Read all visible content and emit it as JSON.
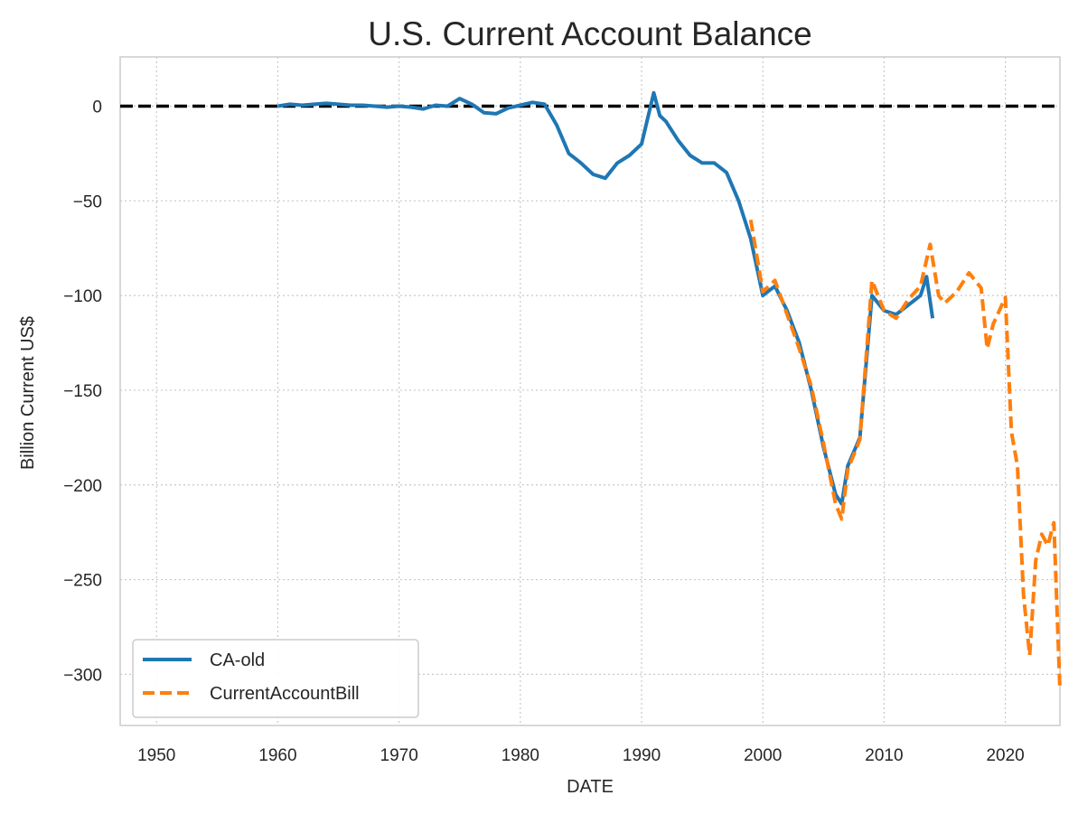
{
  "chart_data": {
    "type": "line",
    "title": "U.S. Current Account Balance",
    "xlabel": "DATE",
    "ylabel": "Billion Current US$",
    "xlim": [
      1947,
      2024.5
    ],
    "ylim": [
      -327,
      26
    ],
    "xticks": [
      1950,
      1960,
      1970,
      1980,
      1990,
      2000,
      2010,
      2020
    ],
    "xtick_labels": [
      "1950",
      "1960",
      "1970",
      "1980",
      "1990",
      "2000",
      "2010",
      "2020"
    ],
    "yticks": [
      0,
      -50,
      -100,
      -150,
      -200,
      -250,
      -300
    ],
    "ytick_labels": [
      "0",
      "−50",
      "−100",
      "−150",
      "−200",
      "−250",
      "−300"
    ],
    "grid": true,
    "legend_position": "lower-left",
    "reference_line": {
      "y": 0,
      "style": "dashed",
      "color": "#000000"
    },
    "series": [
      {
        "name": "CA-old",
        "color": "#1f77b4",
        "style": "solid",
        "points": [
          [
            1960,
            0
          ],
          [
            1961,
            1
          ],
          [
            1962,
            0.5
          ],
          [
            1963,
            1
          ],
          [
            1964,
            1.5
          ],
          [
            1965,
            1
          ],
          [
            1966,
            0.5
          ],
          [
            1967,
            0.5
          ],
          [
            1968,
            0
          ],
          [
            1969,
            -0.5
          ],
          [
            1970,
            0
          ],
          [
            1971,
            -0.5
          ],
          [
            1972,
            -1.5
          ],
          [
            1973,
            0.5
          ],
          [
            1974,
            0
          ],
          [
            1975,
            4
          ],
          [
            1976,
            1
          ],
          [
            1977,
            -3.5
          ],
          [
            1978,
            -4
          ],
          [
            1979,
            -1
          ],
          [
            1980,
            0.5
          ],
          [
            1981,
            2
          ],
          [
            1982,
            1
          ],
          [
            1983,
            -10
          ],
          [
            1984,
            -25
          ],
          [
            1985,
            -30
          ],
          [
            1986,
            -36
          ],
          [
            1987,
            -38
          ],
          [
            1988,
            -30
          ],
          [
            1989,
            -26
          ],
          [
            1990,
            -20
          ],
          [
            1991,
            7
          ],
          [
            1991.5,
            -5
          ],
          [
            1992,
            -8
          ],
          [
            1993,
            -18
          ],
          [
            1994,
            -26
          ],
          [
            1995,
            -30
          ],
          [
            1996,
            -30
          ],
          [
            1997,
            -35
          ],
          [
            1998,
            -50
          ],
          [
            1999,
            -70
          ],
          [
            2000,
            -100
          ],
          [
            2001,
            -95
          ],
          [
            2002,
            -108
          ],
          [
            2003,
            -125
          ],
          [
            2004,
            -150
          ],
          [
            2005,
            -180
          ],
          [
            2006,
            -205
          ],
          [
            2006.5,
            -210
          ],
          [
            2007,
            -190
          ],
          [
            2008,
            -175
          ],
          [
            2009,
            -100
          ],
          [
            2010,
            -108
          ],
          [
            2011,
            -110
          ],
          [
            2012,
            -105
          ],
          [
            2013,
            -100
          ],
          [
            2013.5,
            -90
          ],
          [
            2014,
            -112
          ]
        ]
      },
      {
        "name": "CurrentAccountBill",
        "color": "#ff7f0e",
        "style": "dashed",
        "points": [
          [
            1999,
            -60
          ],
          [
            2000,
            -98
          ],
          [
            2001,
            -92
          ],
          [
            2002,
            -110
          ],
          [
            2003,
            -128
          ],
          [
            2004,
            -148
          ],
          [
            2005,
            -178
          ],
          [
            2006,
            -210
          ],
          [
            2006.5,
            -218
          ],
          [
            2007,
            -192
          ],
          [
            2008,
            -176
          ],
          [
            2009,
            -92
          ],
          [
            2010,
            -108
          ],
          [
            2011,
            -112
          ],
          [
            2012,
            -102
          ],
          [
            2013,
            -95
          ],
          [
            2013.8,
            -73
          ],
          [
            2014.5,
            -100
          ],
          [
            2015,
            -104
          ],
          [
            2016,
            -98
          ],
          [
            2017,
            -88
          ],
          [
            2018,
            -96
          ],
          [
            2018.5,
            -128
          ],
          [
            2019,
            -115
          ],
          [
            2020,
            -101
          ],
          [
            2020.5,
            -172
          ],
          [
            2021,
            -190
          ],
          [
            2021.5,
            -258
          ],
          [
            2022,
            -290
          ],
          [
            2022.5,
            -240
          ],
          [
            2023,
            -226
          ],
          [
            2023.5,
            -232
          ],
          [
            2024,
            -220
          ],
          [
            2024.5,
            -308
          ]
        ]
      }
    ]
  }
}
